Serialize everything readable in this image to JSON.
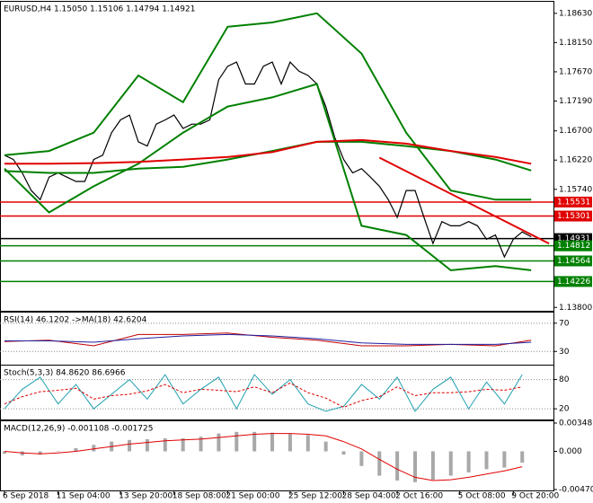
{
  "chart_data": [
    {
      "type": "line",
      "title": "EURUSD,H4  1.15050 1.15106 1.14794 1.14921",
      "xlim": [
        -0.5,
        61.5
      ],
      "ylim": [
        1.1376,
        1.1879
      ],
      "yticks": [
        {
          "value": 1.1863,
          "label": "1.18630"
        },
        {
          "value": 1.1815,
          "label": "1.18150"
        },
        {
          "value": 1.1767,
          "label": "1.17670"
        },
        {
          "value": 1.1719,
          "label": "1.17190"
        },
        {
          "value": 1.167,
          "label": "1.16700"
        },
        {
          "value": 1.1622,
          "label": "1.16220"
        },
        {
          "value": 1.1574,
          "label": "1.15740"
        },
        {
          "value": 1.138,
          "label": "1.13800"
        }
      ],
      "grid": false,
      "series": [
        {
          "type": "line",
          "color": "#000000",
          "width": 1.2,
          "x": [
            0,
            1,
            2,
            3,
            4,
            5,
            6,
            7,
            8,
            9,
            10,
            11,
            12,
            13,
            14,
            15,
            16,
            17,
            18,
            19,
            20,
            21,
            22,
            23,
            24,
            25,
            26,
            27,
            28,
            29,
            30,
            31,
            32,
            33,
            34,
            35,
            36,
            37,
            38,
            39,
            40,
            41,
            42,
            43,
            44,
            45,
            46,
            47,
            48,
            49,
            50,
            51,
            52,
            53,
            54,
            55,
            56,
            57,
            58,
            59
          ],
          "values": [
            1.163,
            1.1623,
            1.1601,
            1.1572,
            1.1557,
            1.1594,
            1.1601,
            1.1594,
            1.1587,
            1.1587,
            1.1623,
            1.163,
            1.1667,
            1.1688,
            1.1696,
            1.1652,
            1.1645,
            1.1681,
            1.1688,
            1.1696,
            1.1674,
            1.1681,
            1.1681,
            1.1688,
            1.1754,
            1.1776,
            1.1783,
            1.1747,
            1.1747,
            1.1776,
            1.1783,
            1.1747,
            1.1783,
            1.1768,
            1.1761,
            1.1747,
            1.171,
            1.1659,
            1.1623,
            1.1601,
            1.1608,
            1.1594,
            1.1579,
            1.1557,
            1.1528,
            1.1572,
            1.1572,
            1.1528,
            1.1485,
            1.1521,
            1.1514,
            1.1514,
            1.1521,
            1.1514,
            1.1492,
            1.1499,
            1.1463,
            1.1492,
            1.1504,
            1.1496
          ]
        },
        {
          "type": "line",
          "color": "#008000",
          "width": 2,
          "x": [
            0,
            5,
            10,
            15,
            20,
            25,
            30,
            35,
            40,
            45,
            50,
            55,
            59
          ],
          "values": [
            1.163,
            1.1637,
            1.1667,
            1.1761,
            1.1717,
            1.1841,
            1.1848,
            1.1863,
            1.1797,
            1.1667,
            1.1572,
            1.1557,
            1.1557
          ]
        },
        {
          "type": "line",
          "color": "#008000",
          "width": 2,
          "x": [
            0,
            5,
            10,
            15,
            20,
            25,
            30,
            35,
            40,
            45,
            50,
            55,
            59
          ],
          "values": [
            1.1608,
            1.1536,
            1.1579,
            1.1616,
            1.1667,
            1.171,
            1.1725,
            1.1747,
            1.1514,
            1.1499,
            1.1441,
            1.1448,
            1.1441
          ]
        },
        {
          "type": "line",
          "color": "#008000",
          "width": 2,
          "x": [
            0,
            5,
            10,
            15,
            20,
            25,
            30,
            35,
            40,
            45,
            50,
            55,
            59
          ],
          "values": [
            1.1604,
            1.1601,
            1.1601,
            1.1608,
            1.1611,
            1.1623,
            1.1637,
            1.1652,
            1.1652,
            1.1645,
            1.1637,
            1.1623,
            1.1605
          ]
        },
        {
          "type": "line",
          "color": "#e00000",
          "width": 2,
          "x": [
            0,
            5,
            10,
            15,
            20,
            25,
            30,
            35,
            40,
            45,
            50,
            55,
            59
          ],
          "values": [
            1.1616,
            1.1616,
            1.1617,
            1.1619,
            1.1623,
            1.1627,
            1.1635,
            1.1652,
            1.1655,
            1.1649,
            1.1637,
            1.1627,
            1.1616
          ]
        }
      ],
      "trendline": {
        "color": "#e00000",
        "x": [
          42,
          61
        ],
        "values": [
          1.1626,
          1.1485
        ]
      },
      "levels": [
        {
          "value": 1.15531,
          "color": "#e00000"
        },
        {
          "value": 1.15301,
          "color": "#e00000"
        },
        {
          "value": 1.14931,
          "color": "#000000"
        },
        {
          "value": 1.14812,
          "color": "#008000"
        },
        {
          "value": 1.14564,
          "color": "#008000"
        },
        {
          "value": 1.14226,
          "color": "#008000"
        }
      ]
    },
    {
      "type": "line",
      "title": "RSI(14) 46.1202 ->MA(18) 42.6204",
      "xlim": [
        -0.5,
        61.5
      ],
      "ylim": [
        12.5,
        82.5
      ],
      "yticks": [
        70,
        30
      ],
      "grid": true,
      "series": [
        {
          "type": "line",
          "color": "#c00000",
          "width": 1,
          "x": [
            0,
            5,
            10,
            15,
            20,
            25,
            30,
            35,
            40,
            45,
            50,
            55,
            59
          ],
          "values": [
            44,
            46,
            38,
            54,
            54,
            56,
            50,
            46,
            38,
            38,
            40,
            38,
            46
          ]
        },
        {
          "type": "line",
          "color": "#2020a0",
          "width": 1,
          "x": [
            0,
            5,
            10,
            15,
            20,
            25,
            30,
            35,
            40,
            45,
            50,
            55,
            59
          ],
          "values": [
            45,
            45,
            43,
            48,
            52,
            54,
            52,
            48,
            42,
            40,
            40,
            40,
            43
          ]
        }
      ]
    },
    {
      "type": "line",
      "title": "Stoch(5,3,3) 84.8620 86.6966",
      "xlim": [
        -0.5,
        61.5
      ],
      "ylim": [
        0,
        105
      ],
      "yticks": [
        80,
        20
      ],
      "grid": true,
      "series": [
        {
          "type": "line",
          "color": "#20a0b0",
          "width": 1,
          "x": [
            0,
            2,
            4,
            6,
            8,
            10,
            12,
            14,
            16,
            18,
            20,
            22,
            24,
            26,
            28,
            30,
            32,
            34,
            36,
            38,
            40,
            42,
            44,
            46,
            48,
            50,
            52,
            54,
            56,
            58
          ],
          "values": [
            20,
            60,
            85,
            30,
            70,
            20,
            50,
            80,
            40,
            90,
            30,
            60,
            85,
            20,
            90,
            50,
            80,
            30,
            15,
            25,
            70,
            40,
            85,
            15,
            60,
            85,
            20,
            75,
            30,
            90
          ]
        },
        {
          "type": "line",
          "color": "#e00000",
          "width": 1,
          "dash": true,
          "x": [
            0,
            2,
            4,
            6,
            8,
            10,
            12,
            14,
            16,
            18,
            20,
            22,
            24,
            26,
            28,
            30,
            32,
            34,
            36,
            38,
            40,
            42,
            44,
            46,
            48,
            50,
            52,
            54,
            56,
            58
          ],
          "values": [
            30,
            45,
            55,
            58,
            62,
            40,
            47,
            50,
            57,
            70,
            53,
            60,
            58,
            55,
            65,
            53,
            73,
            53,
            42,
            23,
            37,
            45,
            65,
            47,
            53,
            53,
            55,
            60,
            58,
            65
          ]
        }
      ]
    },
    {
      "type": "bar",
      "title": "MACD(12,26,9) -0.001108 -0.001725",
      "xlim": [
        -0.5,
        61.5
      ],
      "ylim": [
        -0.004707,
        0.003487
      ],
      "yticks": [
        0.003487,
        {
          "value": 0,
          "label": "0.000"
        },
        -0.004707
      ],
      "grid": false,
      "xticks": [
        {
          "value": 0,
          "label": "6 Sep 2018"
        },
        {
          "value": 6,
          "label": "11 Sep 04:00"
        },
        {
          "value": 13,
          "label": "13 Sep 20:00"
        },
        {
          "value": 19,
          "label": "18 Sep 08:00"
        },
        {
          "value": 25,
          "label": "21 Sep 00:00"
        },
        {
          "value": 32,
          "label": "25 Sep 12:00"
        },
        {
          "value": 38,
          "label": "28 Sep 04:00"
        },
        {
          "value": 44,
          "label": "2 Oct 16:00"
        },
        {
          "value": 51,
          "label": "5 Oct 08:00"
        },
        {
          "value": 57,
          "label": "9 Oct 20:00"
        }
      ],
      "series": [
        {
          "type": "bar",
          "color": "#a8a8a8",
          "x": [
            0,
            2,
            4,
            6,
            8,
            10,
            12,
            14,
            16,
            18,
            20,
            22,
            24,
            26,
            28,
            30,
            32,
            34,
            36,
            38,
            40,
            42,
            44,
            46,
            48,
            50,
            52,
            54,
            56,
            58
          ],
          "values": [
            -0.0003,
            -0.0005,
            -0.0004,
            0.0,
            0.0004,
            0.0008,
            0.0012,
            0.0014,
            0.0015,
            0.0016,
            0.0016,
            0.0018,
            0.0022,
            0.0024,
            0.0024,
            0.0023,
            0.0022,
            0.002,
            0.0012,
            -0.0004,
            -0.0018,
            -0.003,
            -0.0036,
            -0.0038,
            -0.0035,
            -0.003,
            -0.0026,
            -0.0022,
            -0.002,
            -0.0014
          ]
        },
        {
          "type": "line",
          "color": "#e00000",
          "width": 1,
          "x": [
            0,
            2,
            4,
            6,
            8,
            10,
            12,
            14,
            16,
            18,
            20,
            22,
            24,
            26,
            28,
            30,
            32,
            34,
            36,
            38,
            40,
            42,
            44,
            46,
            48,
            50,
            52,
            54,
            56,
            58
          ],
          "values": [
            0.0,
            -0.0002,
            -0.0003,
            -0.0002,
            0.0,
            0.0003,
            0.0006,
            0.0009,
            0.0011,
            0.0013,
            0.0014,
            0.0015,
            0.0017,
            0.0019,
            0.0021,
            0.0022,
            0.0022,
            0.0021,
            0.0019,
            0.0012,
            0.0003,
            -0.001,
            -0.0022,
            -0.0032,
            -0.0036,
            -0.0035,
            -0.0032,
            -0.0028,
            -0.0024,
            -0.0019
          ]
        }
      ]
    }
  ]
}
